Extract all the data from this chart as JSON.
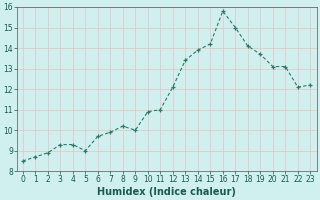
{
  "x": [
    0,
    1,
    2,
    3,
    4,
    5,
    6,
    7,
    8,
    9,
    10,
    11,
    12,
    13,
    14,
    15,
    16,
    17,
    18,
    19,
    20,
    21,
    22,
    23
  ],
  "y": [
    8.5,
    8.7,
    8.9,
    9.3,
    9.3,
    9.0,
    9.7,
    9.9,
    10.2,
    10.0,
    10.9,
    11.0,
    12.1,
    13.4,
    13.9,
    14.2,
    15.8,
    15.0,
    14.1,
    13.7,
    13.1,
    13.1,
    12.1,
    12.2
  ],
  "xlabel": "Humidex (Indice chaleur)",
  "ylabel": "",
  "ylim": [
    8,
    16
  ],
  "xlim": [
    -0.5,
    23.5
  ],
  "yticks": [
    8,
    9,
    10,
    11,
    12,
    13,
    14,
    15,
    16
  ],
  "xticks": [
    0,
    1,
    2,
    3,
    4,
    5,
    6,
    7,
    8,
    9,
    10,
    11,
    12,
    13,
    14,
    15,
    16,
    17,
    18,
    19,
    20,
    21,
    22,
    23
  ],
  "line_color": "#2d7a6a",
  "bg_color": "#cff0ee",
  "grid_color": "#e8c8c8",
  "label_fontsize": 7,
  "tick_fontsize": 5.5
}
